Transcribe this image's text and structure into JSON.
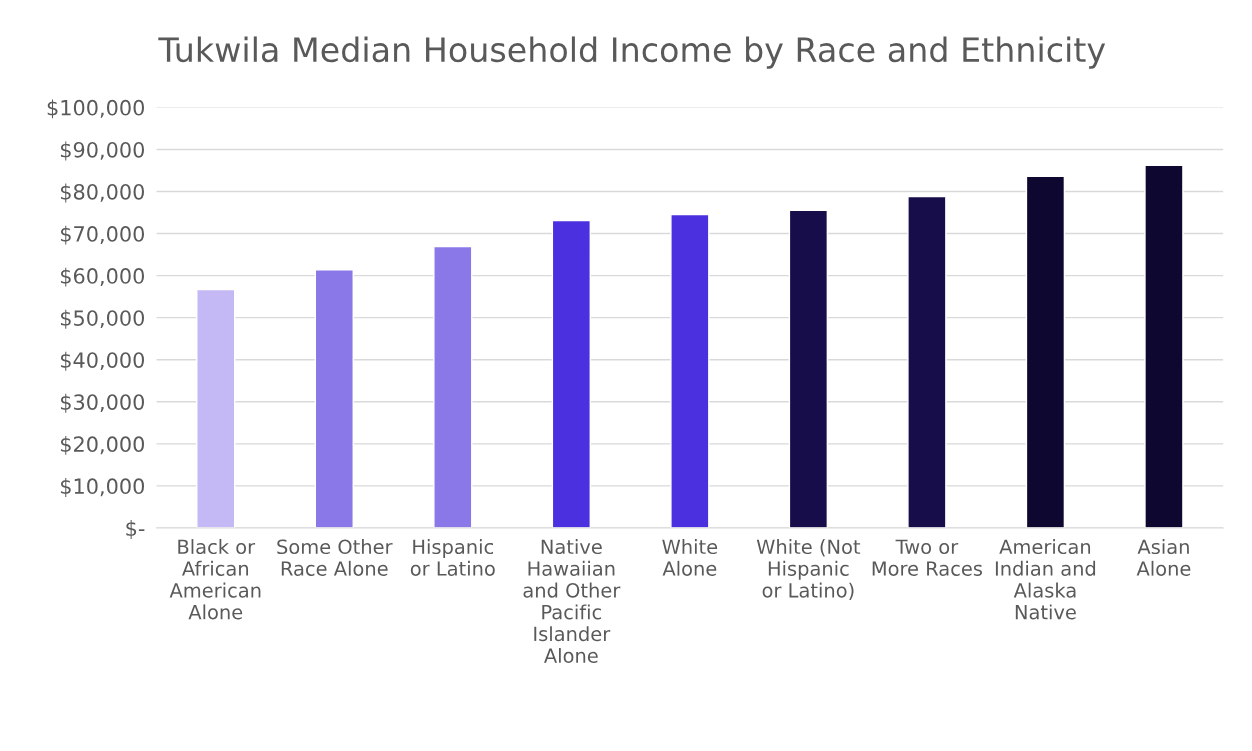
{
  "chart_data": {
    "type": "bar",
    "title": "Tukwila Median Household Income by Race and Ethnicity",
    "categories": [
      "Black or African American Alone",
      "Some Other Race Alone",
      "Hispanic or Latino",
      "Native Hawaiian and Other Pacific Islander Alone",
      "White Alone",
      "White (Not Hispanic or Latino)",
      "Two or More Races",
      "American Indian and Alaska Native",
      "Asian Alone"
    ],
    "values": [
      56700,
      61400,
      66900,
      73100,
      74500,
      75500,
      78800,
      83600,
      86200
    ],
    "colors": [
      "#c5b9f5",
      "#8b78e8",
      "#8b78e8",
      "#4b30e0",
      "#4b30e0",
      "#170d4a",
      "#170d4a",
      "#0e0830",
      "#0e0830"
    ],
    "ylim": [
      0,
      100000
    ],
    "yticks": [
      {
        "value": 0,
        "label": "$-"
      },
      {
        "value": 10000,
        "label": "$10,000"
      },
      {
        "value": 20000,
        "label": "$20,000"
      },
      {
        "value": 30000,
        "label": "$30,000"
      },
      {
        "value": 40000,
        "label": "$40,000"
      },
      {
        "value": 50000,
        "label": "$50,000"
      },
      {
        "value": 60000,
        "label": "$60,000"
      },
      {
        "value": 70000,
        "label": "$70,000"
      },
      {
        "value": 80000,
        "label": "$80,000"
      },
      {
        "value": 90000,
        "label": "$90,000"
      },
      {
        "value": 100000,
        "label": "$100,000"
      }
    ],
    "grid": "y",
    "legend": false
  }
}
